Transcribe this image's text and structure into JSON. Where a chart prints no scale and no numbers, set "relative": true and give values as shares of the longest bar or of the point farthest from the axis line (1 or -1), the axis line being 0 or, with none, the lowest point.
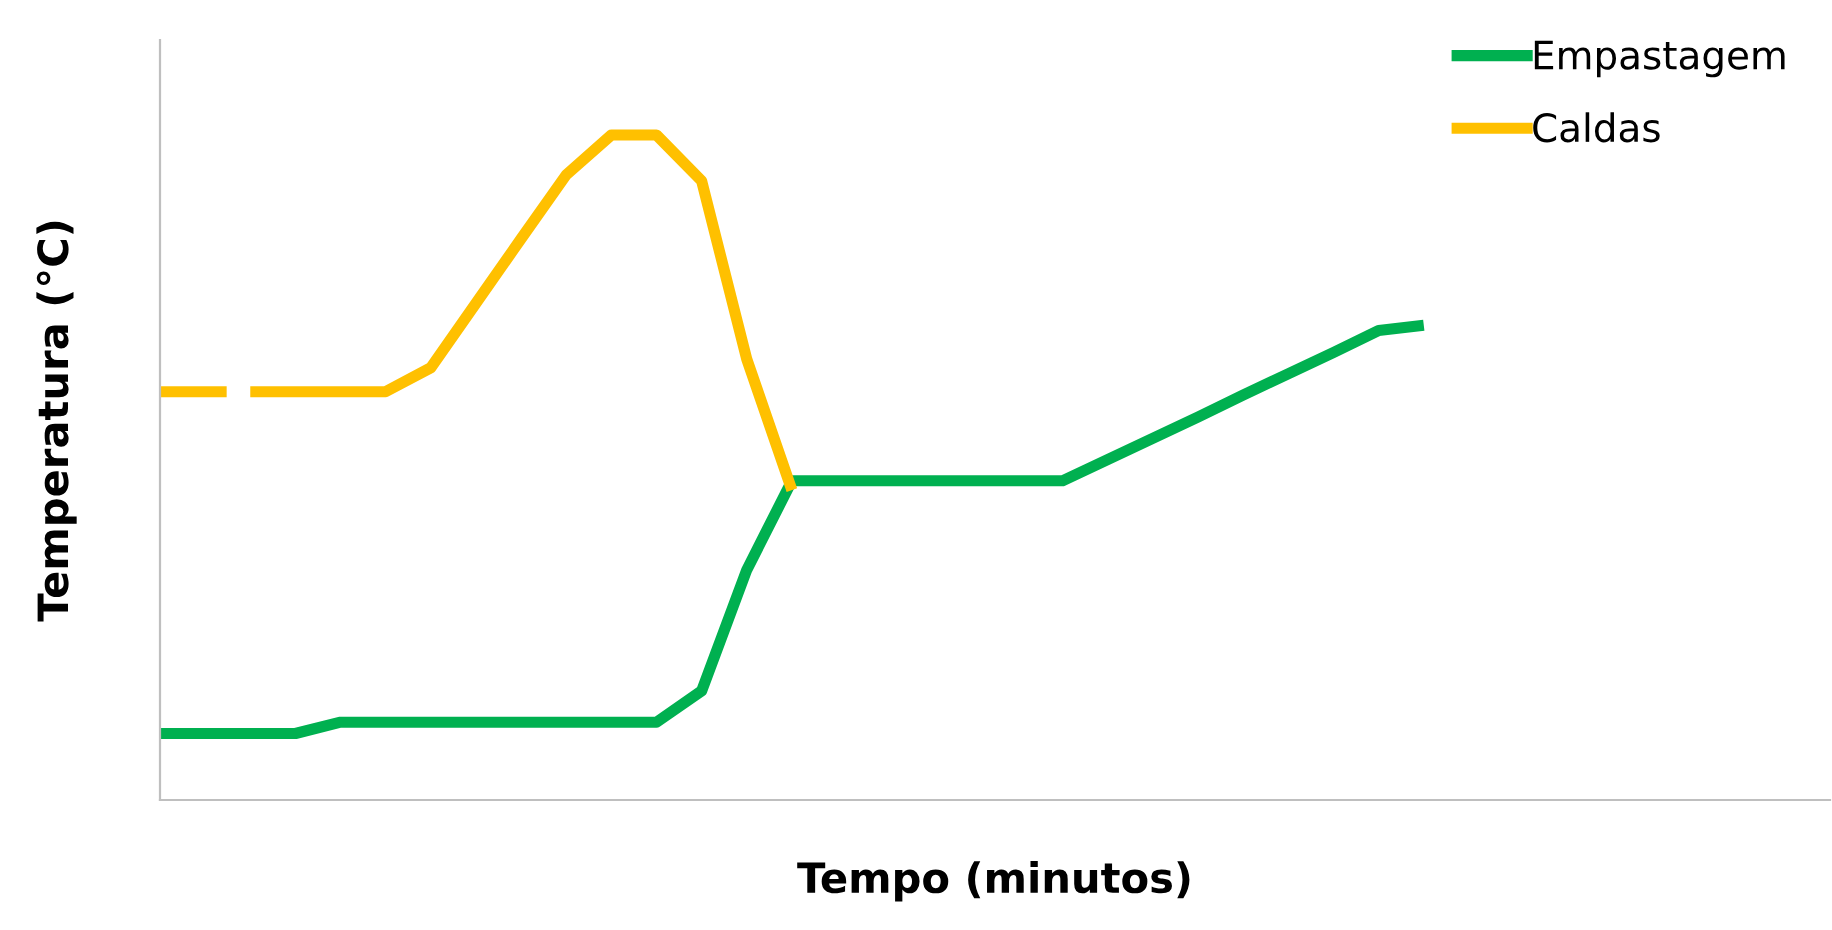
{
  "chart_data": {
    "type": "line",
    "relative": true,
    "xlabel": "Tempo (minutos)",
    "ylabel": "Temperatura (°C)",
    "categories": [
      null,
      null,
      null,
      null,
      null,
      null,
      null,
      null,
      null,
      null,
      null,
      null,
      null,
      null,
      null,
      null,
      null,
      null,
      null,
      null,
      null,
      null,
      null,
      null,
      null,
      null,
      null,
      null,
      null,
      null,
      null,
      null,
      null,
      null,
      null,
      null,
      null,
      null
    ],
    "series": [
      {
        "name": "Empastagem",
        "color": "#00b050",
        "values": [
          0.1,
          0.1,
          0.1,
          0.1,
          0.117,
          0.117,
          0.117,
          0.117,
          0.117,
          0.117,
          0.117,
          0.117,
          0.164,
          0.346,
          0.48,
          0.48,
          0.48,
          0.48,
          0.48,
          0.48,
          0.48,
          0.512,
          0.544,
          0.576,
          0.609,
          0.641,
          0.673,
          0.706,
          0.714,
          null,
          null,
          null,
          null,
          null,
          null,
          null,
          null,
          null
        ]
      },
      {
        "name": "Caldas",
        "color": "#ffc000",
        "values": [
          null,
          null,
          0.614,
          0.614,
          0.614,
          0.614,
          0.65,
          0.747,
          0.844,
          0.94,
          1,
          1,
          0.931,
          0.663,
          0.466,
          null,
          null,
          null,
          null,
          null,
          null,
          null,
          null,
          null,
          null,
          null,
          null,
          null,
          null,
          null,
          null,
          null,
          null,
          null,
          null,
          null,
          null,
          null
        ]
      },
      {
        "color": "#ffc000",
        "line_style": "dashed",
        "values": [
          0.614,
          0.614,
          0.614,
          null,
          null,
          null,
          null,
          null,
          null,
          null,
          null,
          null,
          null,
          null,
          null,
          null,
          null,
          null,
          null,
          null,
          null,
          null,
          null,
          null,
          null,
          null,
          null,
          null,
          null,
          null,
          null,
          null,
          null,
          null,
          null,
          null,
          null,
          null
        ]
      }
    ],
    "legend": "top right",
    "marker": "none",
    "line_style": "solid"
  }
}
